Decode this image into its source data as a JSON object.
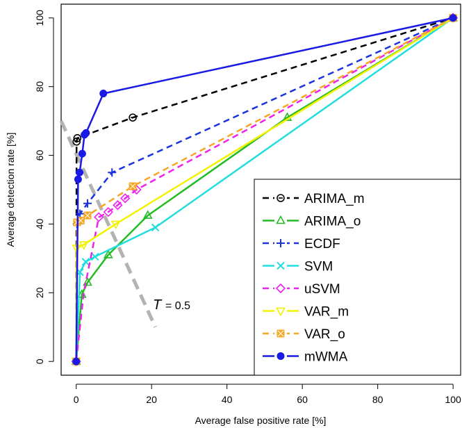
{
  "chart_data": {
    "type": "line",
    "title": "",
    "xlabel": "Average false positive rate [%]",
    "ylabel": "Average detection rate [%]",
    "xlim": [
      -4,
      102
    ],
    "ylim": [
      -4,
      104
    ],
    "x_ticks": [
      0,
      20,
      40,
      60,
      80,
      100
    ],
    "y_ticks": [
      0,
      20,
      40,
      60,
      80,
      100
    ],
    "x_tick_labels": [
      "0",
      "20",
      "40",
      "60",
      "80",
      "100"
    ],
    "y_tick_labels": [
      "0",
      "20",
      "40",
      "60",
      "80",
      "100"
    ],
    "grid": false,
    "legend_position": "bottom-right",
    "annotation": {
      "symbol": "T",
      "text": "= 0.5",
      "line_x": [
        -4,
        21
      ],
      "line_y": [
        70,
        10
      ]
    },
    "series": [
      {
        "name": "ARIMA_m",
        "color": "#000000",
        "marker": "circle-open-dot",
        "dash": "dashed",
        "x": [
          0,
          0.1,
          0.3,
          15,
          100
        ],
        "y": [
          0,
          64,
          65,
          71,
          100
        ],
        "marker_x": [
          0,
          0.1,
          0.3,
          15,
          100
        ],
        "marker_y": [
          0,
          64,
          65,
          71,
          100
        ]
      },
      {
        "name": "ARIMA_o",
        "color": "#22bb22",
        "marker": "triangle-up",
        "dash": "solid",
        "x": [
          0,
          1.5,
          3,
          8.5,
          19,
          56,
          100
        ],
        "y": [
          0,
          19.5,
          23,
          31,
          42.5,
          71,
          100
        ],
        "marker_x": [
          0,
          1.5,
          3,
          8.5,
          19,
          56,
          100
        ],
        "marker_y": [
          0,
          19.5,
          23,
          31,
          42.5,
          71,
          100
        ]
      },
      {
        "name": "ECDF",
        "color": "#1a33dd",
        "marker": "plus",
        "dash": "dashed",
        "x": [
          0,
          0.2,
          0.6,
          1,
          3,
          9.5,
          100
        ],
        "y": [
          0,
          40,
          42.5,
          43,
          46,
          55,
          100
        ],
        "marker_x": [
          0,
          0.2,
          1,
          3,
          9.5,
          100
        ],
        "marker_y": [
          0,
          40,
          43,
          46,
          55,
          100
        ]
      },
      {
        "name": "SVM",
        "color": "#22dddd",
        "marker": "x-cross",
        "dash": "solid",
        "x": [
          0,
          1,
          2.5,
          5,
          21,
          100
        ],
        "y": [
          0,
          26,
          29,
          30.5,
          39,
          100
        ],
        "marker_x": [
          0,
          1,
          2.5,
          5,
          21,
          100
        ],
        "marker_y": [
          0,
          26,
          29,
          30.5,
          39,
          100
        ]
      },
      {
        "name": "uSVM",
        "color": "#ee22ee",
        "marker": "diamond-open",
        "dash": "dashed",
        "x": [
          0,
          2,
          4,
          6,
          8.5,
          11,
          13,
          16,
          100
        ],
        "y": [
          0,
          20,
          31,
          42,
          43.5,
          45.5,
          47.5,
          50,
          100
        ],
        "marker_x": [
          0,
          6,
          8.5,
          11,
          13,
          16,
          100
        ],
        "marker_y": [
          0,
          42,
          43.5,
          45.5,
          47.5,
          50,
          100
        ]
      },
      {
        "name": "VAR_m",
        "color": "#f2f200",
        "marker": "triangle-down",
        "dash": "solid",
        "x": [
          0,
          0.1,
          2,
          10.5,
          100
        ],
        "y": [
          0,
          33,
          34,
          40,
          100
        ],
        "marker_x": [
          0,
          0.1,
          2,
          10.5,
          100
        ],
        "marker_y": [
          0,
          33,
          34,
          40,
          100
        ]
      },
      {
        "name": "VAR_o",
        "color": "#f5a623",
        "marker": "square-x",
        "dash": "dashed",
        "x": [
          0,
          0.2,
          1.2,
          3,
          15,
          100
        ],
        "y": [
          0,
          40.5,
          41,
          42.5,
          51,
          100
        ],
        "marker_x": [
          0,
          0.2,
          1.2,
          3,
          15,
          100
        ],
        "marker_y": [
          0,
          40.5,
          41,
          42.5,
          51,
          100
        ]
      },
      {
        "name": "mWMA",
        "color": "#1a1ae6",
        "marker": "circle-filled",
        "dash": "solid",
        "x": [
          0,
          0.5,
          0.9,
          1.6,
          2.2,
          2.6,
          7.2,
          100
        ],
        "y": [
          0,
          53,
          55,
          60.5,
          66,
          66.5,
          78,
          100
        ],
        "marker_x": [
          0,
          0.5,
          0.9,
          1.6,
          2.2,
          2.6,
          7.2,
          100
        ],
        "marker_y": [
          0,
          53,
          55,
          60.5,
          66,
          66.5,
          78,
          100
        ]
      }
    ]
  }
}
